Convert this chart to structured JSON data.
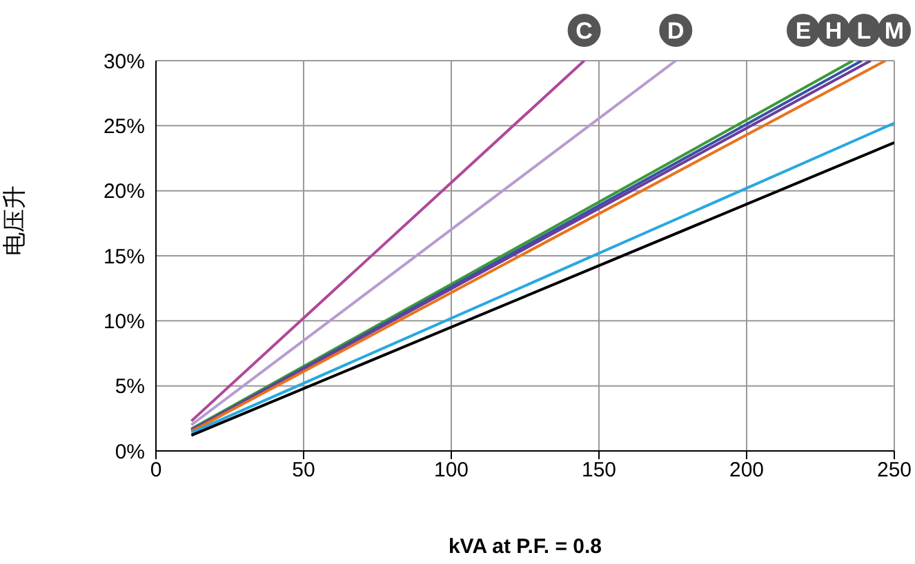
{
  "chart_data": {
    "type": "line",
    "xlabel": "kVA at P.F. = 0.8",
    "ylabel": "电压升",
    "xlim": [
      0,
      250
    ],
    "xticks": [
      0,
      50,
      100,
      150,
      200,
      250
    ],
    "ylim": [
      0,
      30
    ],
    "yticks": [
      {
        "value": 0,
        "label": "0%"
      },
      {
        "value": 5,
        "label": "5%"
      },
      {
        "value": 10,
        "label": "10%"
      },
      {
        "value": 15,
        "label": "15%"
      },
      {
        "value": 20,
        "label": "20%"
      },
      {
        "value": 25,
        "label": "25%"
      },
      {
        "value": 30,
        "label": "30%"
      }
    ],
    "grid": true,
    "marker": "none",
    "line_style": "solid",
    "series": [
      {
        "name": "C",
        "color": "#b0479a",
        "x": [
          12,
          145
        ],
        "values": [
          2.3,
          30
        ]
      },
      {
        "name": "D",
        "color": "#b79bd0",
        "x": [
          12,
          176
        ],
        "values": [
          2.0,
          30
        ]
      },
      {
        "name": "E",
        "color": "#3a9a3a",
        "x": [
          12,
          236
        ],
        "values": [
          1.7,
          30
        ]
      },
      {
        "name": "H",
        "color": "#3b4fa8",
        "x": [
          12,
          239
        ],
        "values": [
          1.6,
          30
        ]
      },
      {
        "name": "L",
        "color": "#6a3d9a",
        "x": [
          12,
          242
        ],
        "values": [
          1.6,
          30
        ]
      },
      {
        "name": "M",
        "color": "#e8731e",
        "x": [
          12,
          247
        ],
        "values": [
          1.5,
          30
        ]
      },
      {
        "color": "#29a8e0",
        "x": [
          12,
          250
        ],
        "values": [
          1.4,
          25.2
        ]
      },
      {
        "color": "#000000",
        "x": [
          12,
          250
        ],
        "values": [
          1.2,
          23.7
        ]
      }
    ]
  }
}
